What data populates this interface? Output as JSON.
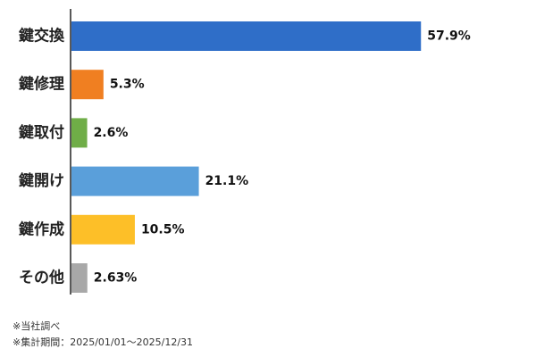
{
  "chart_data": {
    "type": "bar",
    "orientation": "horizontal",
    "categories": [
      "鍵交換",
      "鍵修理",
      "鍵取付",
      "鍵開け",
      "鍵作成",
      "その他"
    ],
    "values": [
      57.9,
      5.3,
      2.6,
      21.1,
      10.5,
      2.63
    ],
    "value_labels": [
      "57.9%",
      "5.3%",
      "2.6%",
      "21.1%",
      "10.5%",
      "2.63%"
    ],
    "colors": [
      "#2f6ec8",
      "#f07f21",
      "#6fad47",
      "#5a9fda",
      "#fdbf28",
      "#a8a8a8"
    ],
    "xlim": [
      0,
      70
    ],
    "grid": false,
    "legend": "none"
  },
  "footnotes": {
    "source": "※当社調べ",
    "period": "※集計期間：2025/01/01〜2025/12/31"
  }
}
